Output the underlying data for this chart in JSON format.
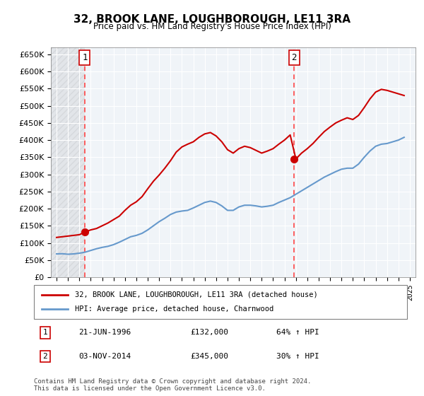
{
  "title": "32, BROOK LANE, LOUGHBOROUGH, LE11 3RA",
  "subtitle": "Price paid vs. HM Land Registry's House Price Index (HPI)",
  "legend_line1": "32, BROOK LANE, LOUGHBOROUGH, LE11 3RA (detached house)",
  "legend_line2": "HPI: Average price, detached house, Charnwood",
  "footer": "Contains HM Land Registry data © Crown copyright and database right 2024.\nThis data is licensed under the Open Government Licence v3.0.",
  "transaction1": {
    "label": "1",
    "date": "21-JUN-1996",
    "price": "£132,000",
    "hpi": "64% ↑ HPI",
    "year": 1996.47
  },
  "transaction2": {
    "label": "2",
    "date": "03-NOV-2014",
    "price": "£345,000",
    "hpi": "30% ↑ HPI",
    "year": 2014.84
  },
  "property_color": "#cc0000",
  "hpi_color": "#6699cc",
  "dashed_line_color": "#ff4444",
  "ylim": [
    0,
    670000
  ],
  "yticks": [
    0,
    50000,
    100000,
    150000,
    200000,
    250000,
    300000,
    350000,
    400000,
    450000,
    500000,
    550000,
    600000,
    650000
  ],
  "hpi_data": {
    "years": [
      1994.0,
      1994.5,
      1995.0,
      1995.5,
      1996.0,
      1996.5,
      1997.0,
      1997.5,
      1998.0,
      1998.5,
      1999.0,
      1999.5,
      2000.0,
      2000.5,
      2001.0,
      2001.5,
      2002.0,
      2002.5,
      2003.0,
      2003.5,
      2004.0,
      2004.5,
      2005.0,
      2005.5,
      2006.0,
      2006.5,
      2007.0,
      2007.5,
      2008.0,
      2008.5,
      2009.0,
      2009.5,
      2010.0,
      2010.5,
      2011.0,
      2011.5,
      2012.0,
      2012.5,
      2013.0,
      2013.5,
      2014.0,
      2014.5,
      2015.0,
      2015.5,
      2016.0,
      2016.5,
      2017.0,
      2017.5,
      2018.0,
      2018.5,
      2019.0,
      2019.5,
      2020.0,
      2020.5,
      2021.0,
      2021.5,
      2022.0,
      2022.5,
      2023.0,
      2023.5,
      2024.0,
      2024.5
    ],
    "values": [
      68000,
      68500,
      67000,
      68000,
      70000,
      73000,
      78000,
      83000,
      87000,
      90000,
      95000,
      102000,
      110000,
      118000,
      122000,
      128000,
      138000,
      150000,
      162000,
      172000,
      183000,
      190000,
      193000,
      195000,
      202000,
      210000,
      218000,
      222000,
      218000,
      208000,
      195000,
      195000,
      205000,
      210000,
      210000,
      208000,
      205000,
      207000,
      210000,
      218000,
      225000,
      232000,
      242000,
      252000,
      262000,
      272000,
      282000,
      292000,
      300000,
      308000,
      315000,
      318000,
      318000,
      330000,
      350000,
      368000,
      382000,
      388000,
      390000,
      395000,
      400000,
      408000
    ]
  },
  "property_data": {
    "years": [
      1994.0,
      1994.5,
      1995.0,
      1995.5,
      1996.0,
      1996.5,
      1997.0,
      1997.5,
      1998.0,
      1998.5,
      1999.0,
      1999.5,
      2000.0,
      2000.5,
      2001.0,
      2001.5,
      2002.0,
      2002.5,
      2003.0,
      2003.5,
      2004.0,
      2004.5,
      2005.0,
      2005.5,
      2006.0,
      2006.5,
      2007.0,
      2007.5,
      2008.0,
      2008.5,
      2009.0,
      2009.5,
      2010.0,
      2010.5,
      2011.0,
      2011.5,
      2012.0,
      2012.5,
      2013.0,
      2013.5,
      2014.0,
      2014.5,
      2015.0,
      2015.5,
      2016.0,
      2016.5,
      2017.0,
      2017.5,
      2018.0,
      2018.5,
      2019.0,
      2019.5,
      2020.0,
      2020.5,
      2021.0,
      2021.5,
      2022.0,
      2022.5,
      2023.0,
      2023.5,
      2024.0,
      2024.5
    ],
    "values": [
      116000,
      118000,
      120000,
      122000,
      124000,
      132000,
      138000,
      142000,
      150000,
      158000,
      168000,
      178000,
      195000,
      210000,
      220000,
      235000,
      258000,
      280000,
      298000,
      318000,
      340000,
      365000,
      380000,
      388000,
      395000,
      408000,
      418000,
      422000,
      412000,
      395000,
      372000,
      362000,
      375000,
      382000,
      378000,
      370000,
      362000,
      368000,
      375000,
      388000,
      400000,
      415000,
      345000,
      362000,
      375000,
      390000,
      408000,
      425000,
      438000,
      450000,
      458000,
      465000,
      460000,
      472000,
      495000,
      520000,
      540000,
      548000,
      545000,
      540000,
      535000,
      530000
    ]
  }
}
